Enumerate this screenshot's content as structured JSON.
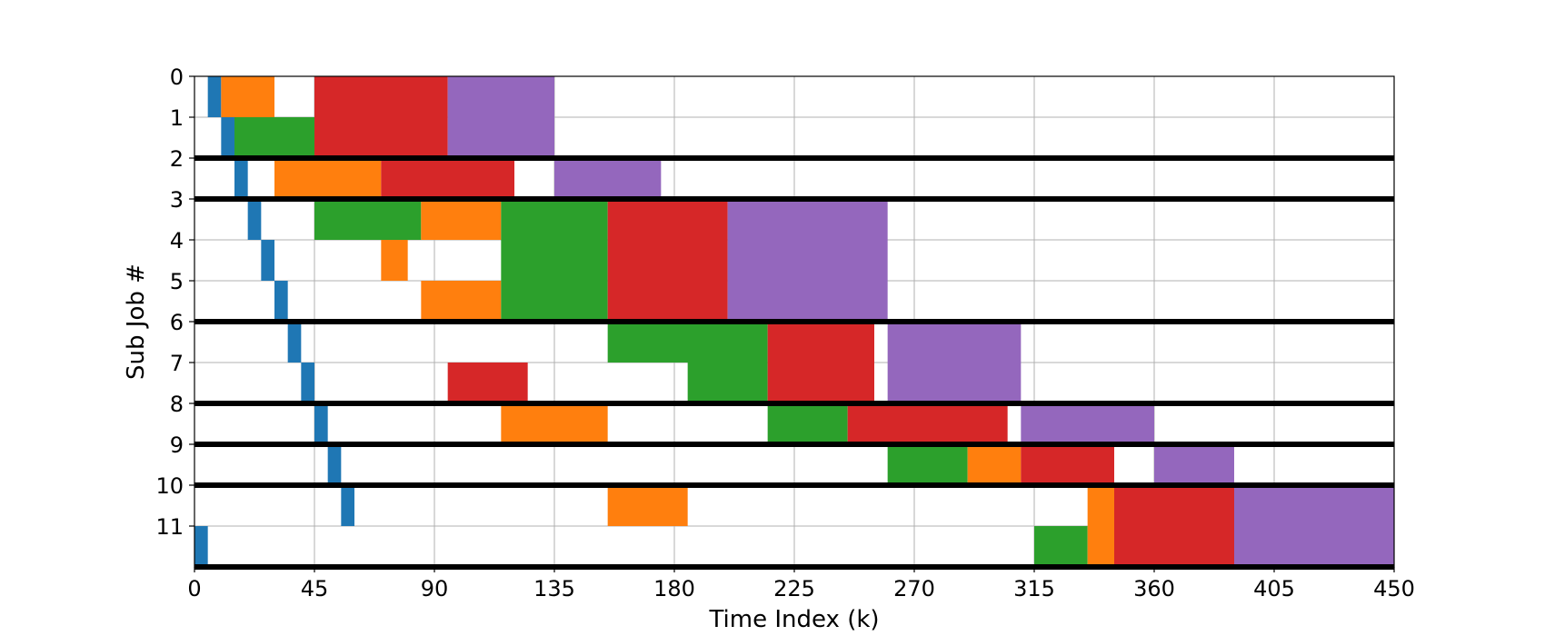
{
  "chart_data": {
    "type": "gantt",
    "title": "",
    "xlabel": "Time Index (k)",
    "ylabel": "Sub Job #",
    "xlim": [
      0,
      450
    ],
    "xticks": [
      "0",
      "45",
      "90",
      "135",
      "180",
      "225",
      "270",
      "315",
      "360",
      "405",
      "450"
    ],
    "yticks": [
      "0",
      "1",
      "2",
      "3",
      "4",
      "5",
      "6",
      "7",
      "8",
      "9",
      "10",
      "11"
    ],
    "grid": true,
    "phase_colors": {
      "blue": "#1f77b4",
      "orange": "#ff7f0e",
      "green": "#2ca02c",
      "red": "#d62728",
      "purple": "#9467bd"
    },
    "job_separators": [
      2,
      3,
      6,
      8,
      9,
      10,
      12
    ],
    "rows": [
      {
        "row": 0,
        "segments": [
          {
            "start": 5,
            "end": 10,
            "phase": "blue"
          },
          {
            "start": 10,
            "end": 30,
            "phase": "orange"
          },
          {
            "start": 45,
            "end": 95,
            "phase": "red"
          },
          {
            "start": 95,
            "end": 135,
            "phase": "purple"
          }
        ]
      },
      {
        "row": 1,
        "segments": [
          {
            "start": 10,
            "end": 15,
            "phase": "blue"
          },
          {
            "start": 15,
            "end": 45,
            "phase": "green"
          },
          {
            "start": 45,
            "end": 95,
            "phase": "red"
          },
          {
            "start": 95,
            "end": 135,
            "phase": "purple"
          }
        ]
      },
      {
        "row": 2,
        "segments": [
          {
            "start": 15,
            "end": 20,
            "phase": "blue"
          },
          {
            "start": 30,
            "end": 70,
            "phase": "orange"
          },
          {
            "start": 70,
            "end": 120,
            "phase": "red"
          },
          {
            "start": 135,
            "end": 175,
            "phase": "purple"
          }
        ]
      },
      {
        "row": 3,
        "segments": [
          {
            "start": 20,
            "end": 25,
            "phase": "blue"
          },
          {
            "start": 45,
            "end": 85,
            "phase": "green"
          },
          {
            "start": 85,
            "end": 115,
            "phase": "orange"
          },
          {
            "start": 115,
            "end": 155,
            "phase": "green"
          },
          {
            "start": 155,
            "end": 200,
            "phase": "red"
          },
          {
            "start": 200,
            "end": 260,
            "phase": "purple"
          }
        ]
      },
      {
        "row": 4,
        "segments": [
          {
            "start": 25,
            "end": 30,
            "phase": "blue"
          },
          {
            "start": 70,
            "end": 80,
            "phase": "orange"
          },
          {
            "start": 115,
            "end": 155,
            "phase": "green"
          },
          {
            "start": 155,
            "end": 200,
            "phase": "red"
          },
          {
            "start": 200,
            "end": 260,
            "phase": "purple"
          }
        ]
      },
      {
        "row": 5,
        "segments": [
          {
            "start": 30,
            "end": 35,
            "phase": "blue"
          },
          {
            "start": 85,
            "end": 115,
            "phase": "orange"
          },
          {
            "start": 115,
            "end": 155,
            "phase": "green"
          },
          {
            "start": 155,
            "end": 200,
            "phase": "red"
          },
          {
            "start": 200,
            "end": 260,
            "phase": "purple"
          }
        ]
      },
      {
        "row": 6,
        "segments": [
          {
            "start": 35,
            "end": 40,
            "phase": "blue"
          },
          {
            "start": 155,
            "end": 215,
            "phase": "green"
          },
          {
            "start": 215,
            "end": 255,
            "phase": "red"
          },
          {
            "start": 260,
            "end": 310,
            "phase": "purple"
          }
        ]
      },
      {
        "row": 7,
        "segments": [
          {
            "start": 40,
            "end": 45,
            "phase": "blue"
          },
          {
            "start": 95,
            "end": 125,
            "phase": "red"
          },
          {
            "start": 185,
            "end": 215,
            "phase": "green"
          },
          {
            "start": 215,
            "end": 255,
            "phase": "red"
          },
          {
            "start": 260,
            "end": 310,
            "phase": "purple"
          }
        ]
      },
      {
        "row": 8,
        "segments": [
          {
            "start": 45,
            "end": 50,
            "phase": "blue"
          },
          {
            "start": 115,
            "end": 155,
            "phase": "orange"
          },
          {
            "start": 215,
            "end": 245,
            "phase": "green"
          },
          {
            "start": 245,
            "end": 305,
            "phase": "red"
          },
          {
            "start": 310,
            "end": 360,
            "phase": "purple"
          }
        ]
      },
      {
        "row": 9,
        "segments": [
          {
            "start": 50,
            "end": 55,
            "phase": "blue"
          },
          {
            "start": 260,
            "end": 290,
            "phase": "green"
          },
          {
            "start": 290,
            "end": 310,
            "phase": "orange"
          },
          {
            "start": 310,
            "end": 345,
            "phase": "red"
          },
          {
            "start": 360,
            "end": 390,
            "phase": "purple"
          }
        ]
      },
      {
        "row": 10,
        "segments": [
          {
            "start": 55,
            "end": 60,
            "phase": "blue"
          },
          {
            "start": 155,
            "end": 185,
            "phase": "orange"
          },
          {
            "start": 335,
            "end": 345,
            "phase": "orange"
          },
          {
            "start": 345,
            "end": 390,
            "phase": "red"
          },
          {
            "start": 390,
            "end": 450,
            "phase": "purple"
          }
        ]
      },
      {
        "row": 11,
        "segments": [
          {
            "start": 0,
            "end": 5,
            "phase": "blue"
          },
          {
            "start": 315,
            "end": 335,
            "phase": "green"
          },
          {
            "start": 335,
            "end": 345,
            "phase": "orange"
          },
          {
            "start": 345,
            "end": 390,
            "phase": "red"
          },
          {
            "start": 390,
            "end": 450,
            "phase": "purple"
          }
        ]
      }
    ]
  }
}
